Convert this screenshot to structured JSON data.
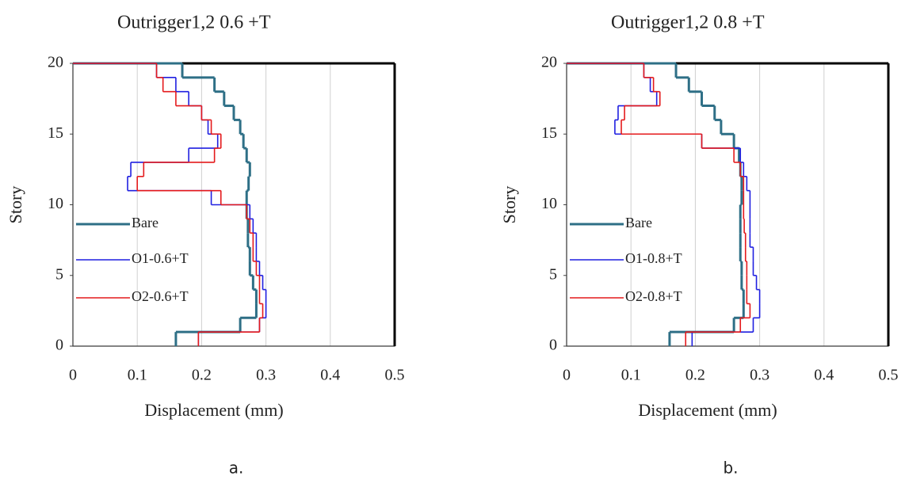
{
  "chart_data": [
    {
      "type": "step",
      "title": "Outrigger1,2 0.6 +T",
      "xlabel": "Displacement (mm)",
      "ylabel": "Story",
      "xlim": [
        0,
        0.5
      ],
      "xticks": [
        0,
        0.1,
        0.2,
        0.3,
        0.4,
        0.5
      ],
      "ylim": [
        0,
        20
      ],
      "yticks": [
        0,
        5,
        10,
        15,
        20
      ],
      "grid": true,
      "series": [
        {
          "name": "Bare",
          "color": "#2e6f86",
          "values": [
            0.16,
            0.26,
            0.285,
            0.285,
            0.28,
            0.275,
            0.275,
            0.272,
            0.272,
            0.27,
            0.27,
            0.273,
            0.275,
            0.27,
            0.265,
            0.26,
            0.25,
            0.235,
            0.22,
            0.17
          ]
        },
        {
          "name": "O1-0.6+T",
          "color": "#1f1fe0",
          "values": [
            0.195,
            0.29,
            0.3,
            0.3,
            0.295,
            0.29,
            0.285,
            0.285,
            0.28,
            0.275,
            0.215,
            0.085,
            0.09,
            0.18,
            0.225,
            0.21,
            0.2,
            0.18,
            0.16,
            0.13
          ]
        },
        {
          "name": "O2-0.6+T",
          "color": "#e41a1c",
          "values": [
            0.195,
            0.29,
            0.295,
            0.29,
            0.29,
            0.285,
            0.28,
            0.28,
            0.275,
            0.27,
            0.23,
            0.1,
            0.11,
            0.22,
            0.23,
            0.215,
            0.2,
            0.16,
            0.14,
            0.13
          ]
        }
      ]
    },
    {
      "type": "step",
      "title": "Outrigger1,2 0.8 +T",
      "xlabel": "Displacement (mm)",
      "ylabel": "Story",
      "xlim": [
        0,
        0.5
      ],
      "xticks": [
        0,
        0.1,
        0.2,
        0.3,
        0.4,
        0.5
      ],
      "ylim": [
        0,
        20
      ],
      "yticks": [
        0,
        5,
        10,
        15,
        20
      ],
      "grid": true,
      "series": [
        {
          "name": "Bare",
          "color": "#2e6f86",
          "values": [
            0.16,
            0.26,
            0.275,
            0.275,
            0.272,
            0.272,
            0.27,
            0.27,
            0.27,
            0.27,
            0.272,
            0.272,
            0.27,
            0.268,
            0.26,
            0.24,
            0.23,
            0.21,
            0.19,
            0.17
          ]
        },
        {
          "name": "O1-0.8+T",
          "color": "#1f1fe0",
          "values": [
            0.195,
            0.29,
            0.3,
            0.3,
            0.295,
            0.29,
            0.29,
            0.285,
            0.285,
            0.285,
            0.285,
            0.28,
            0.275,
            0.27,
            0.21,
            0.075,
            0.08,
            0.14,
            0.13,
            0.12
          ]
        },
        {
          "name": "O2-0.8+T",
          "color": "#e41a1c",
          "values": [
            0.185,
            0.27,
            0.285,
            0.28,
            0.28,
            0.28,
            0.278,
            0.278,
            0.276,
            0.275,
            0.275,
            0.275,
            0.27,
            0.26,
            0.21,
            0.085,
            0.09,
            0.145,
            0.135,
            0.12
          ]
        }
      ]
    }
  ],
  "captions": [
    "a.",
    "b."
  ]
}
